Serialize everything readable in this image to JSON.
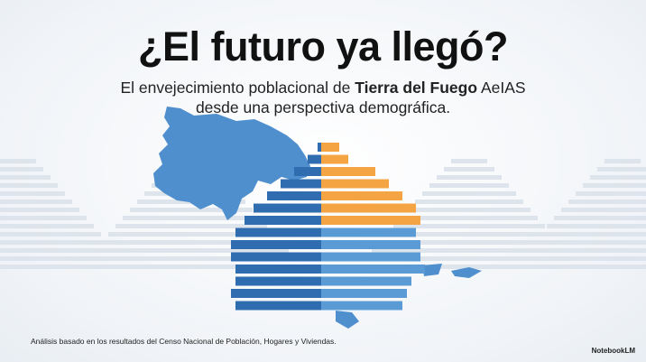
{
  "header": {
    "title": "¿El futuro ya llegó?",
    "subtitle": [
      "El envejecimiento poblacional de",
      "Tierra del Fuego",
      "AeIAS",
      "desde una perspectiva demográfica."
    ]
  },
  "footer": {
    "note": "Análisis basado en los resultados del Censo Nacional de Población, Hogares y Viviendas.",
    "brand": "NotebookLM"
  }
}
